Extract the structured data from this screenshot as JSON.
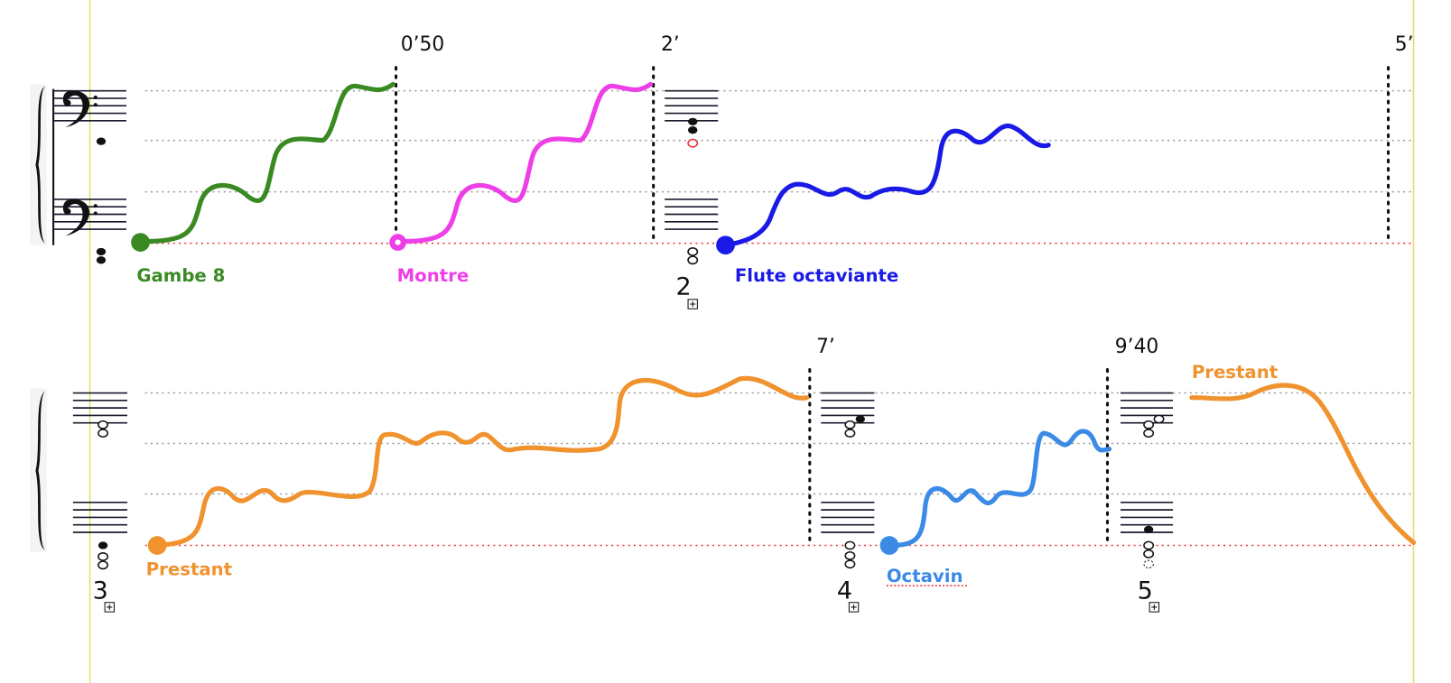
{
  "header": {
    "times": [
      "0’50",
      "2’",
      "5’",
      "7’",
      "9’40"
    ]
  },
  "voices": [
    {
      "label": "Gambe 8"
    },
    {
      "label": "Montre"
    },
    {
      "label": "Flute octaviante"
    },
    {
      "label": "Prestant"
    },
    {
      "label": "Octavin"
    },
    {
      "label": "Prestant"
    }
  ],
  "sections": [
    "2",
    "3",
    "4",
    "5"
  ]
}
